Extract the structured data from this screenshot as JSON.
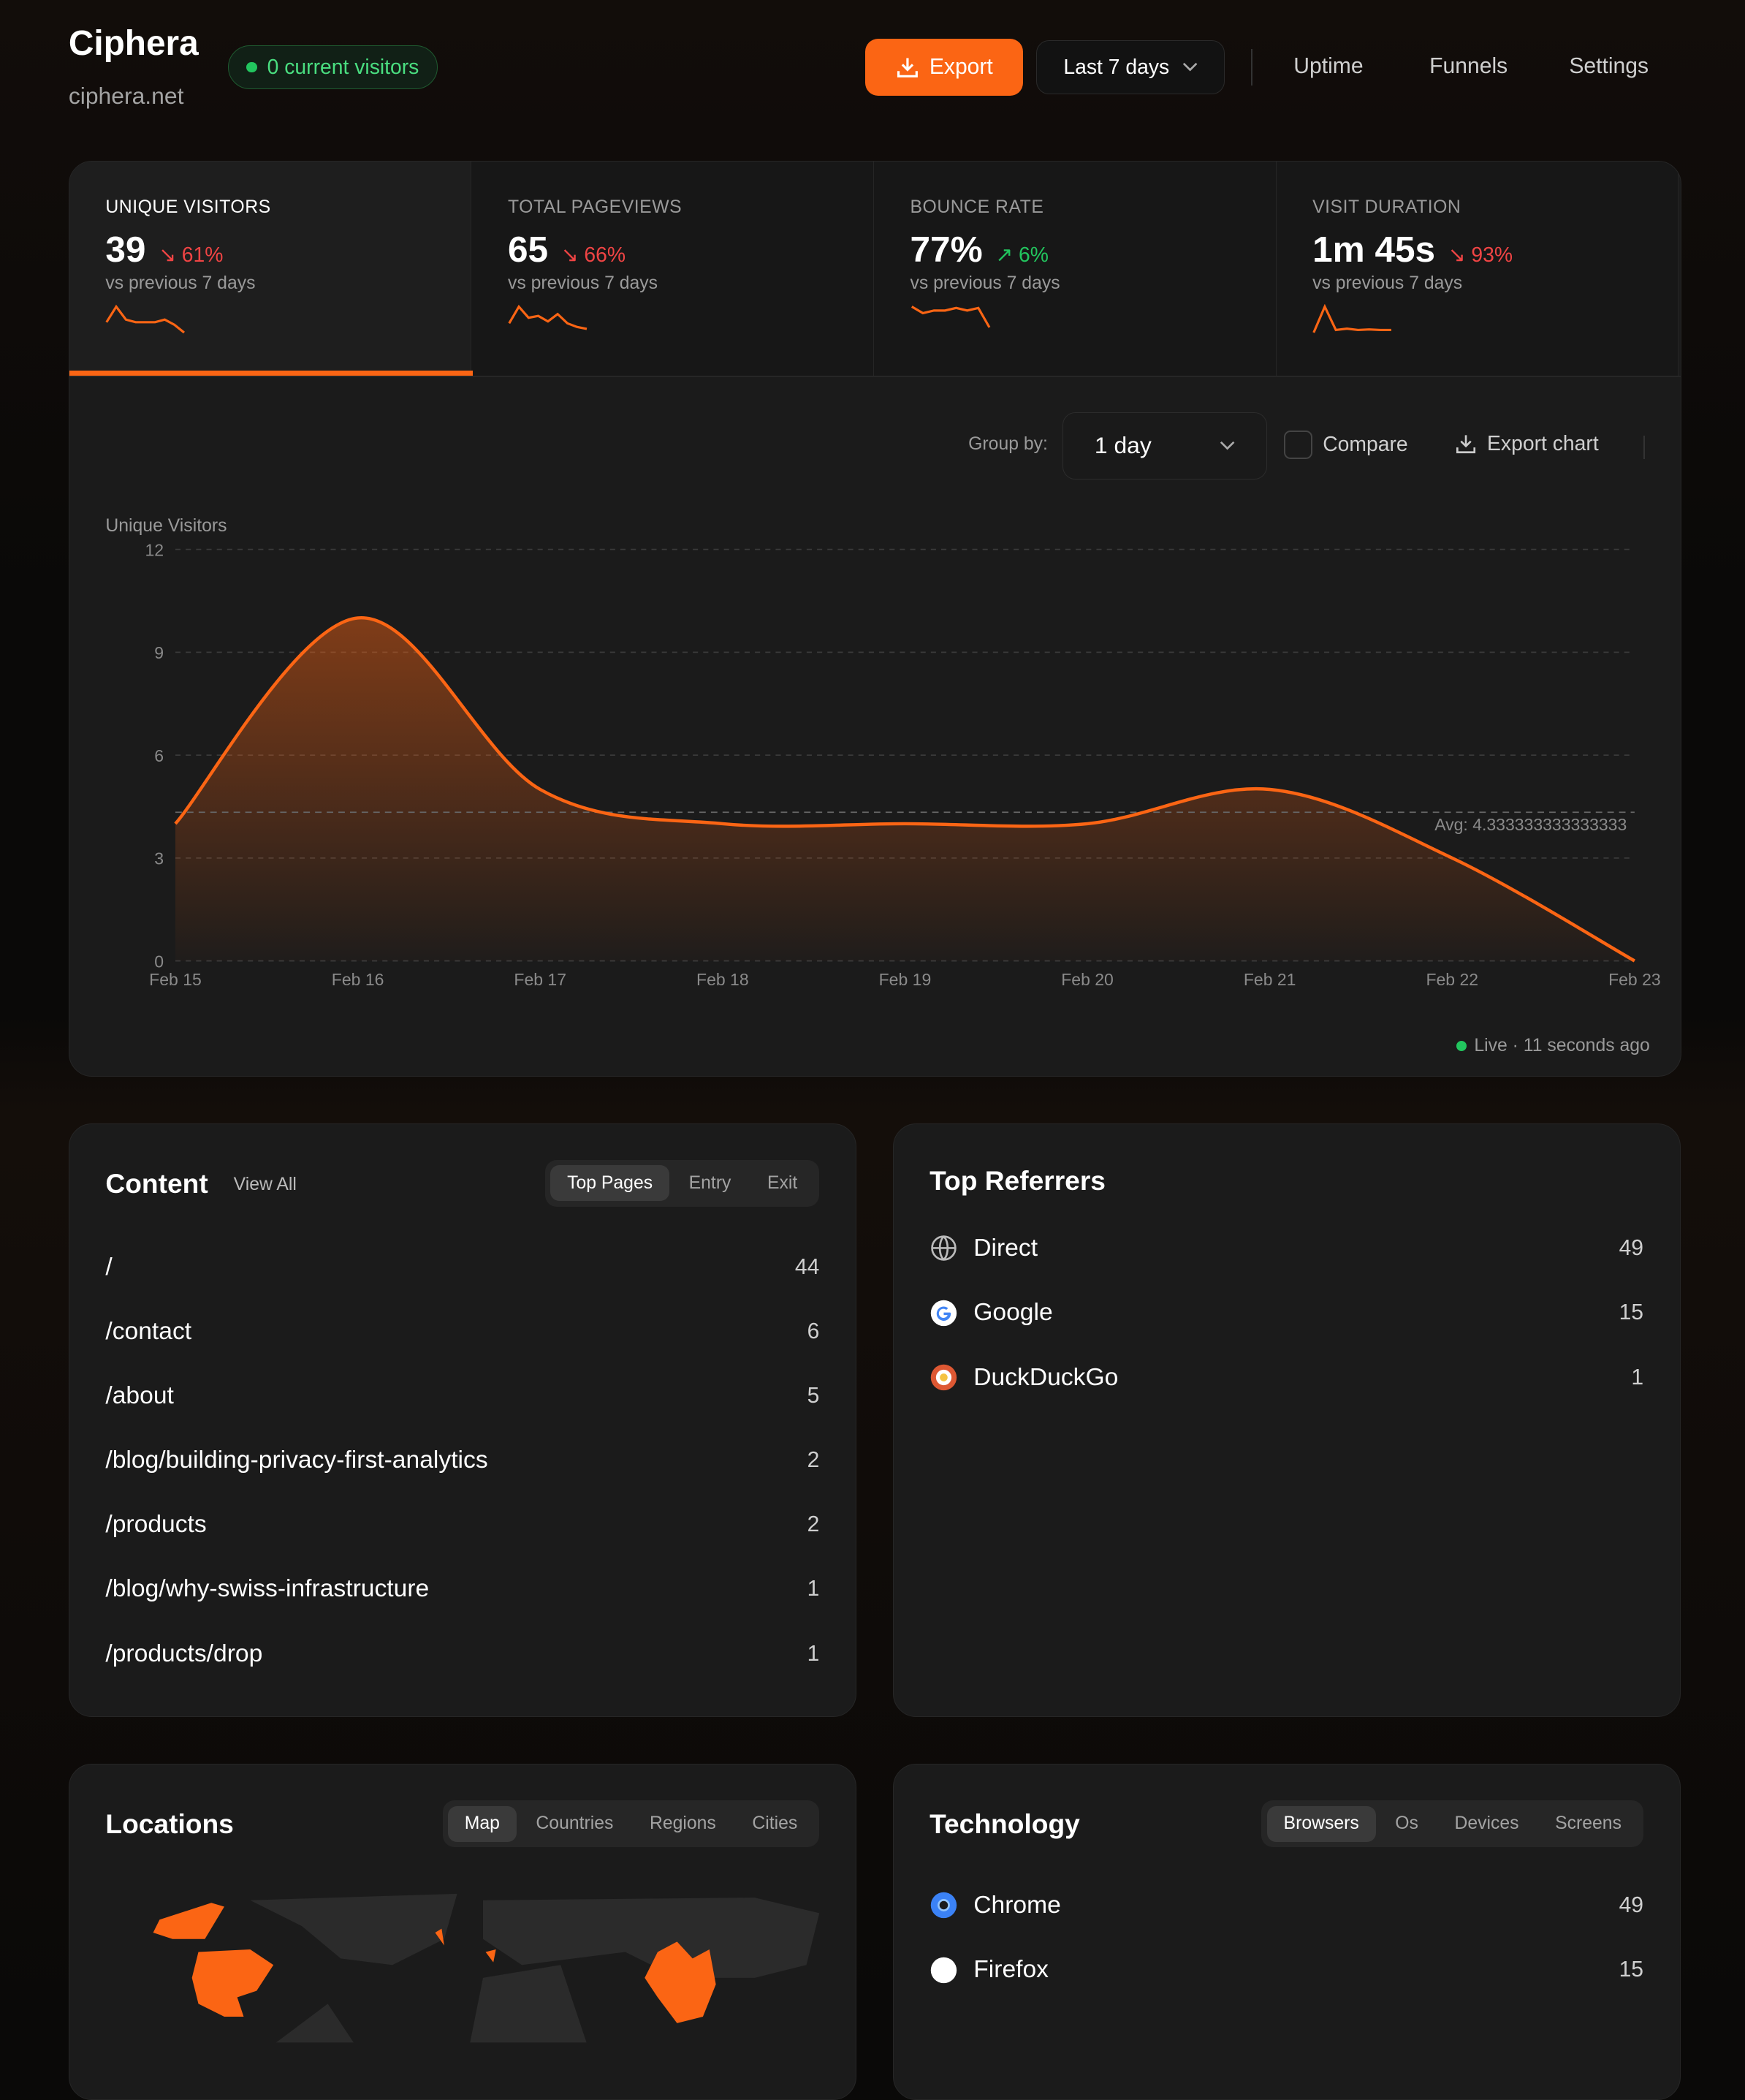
{
  "header": {
    "title": "Ciphera",
    "domain": "ciphera.net",
    "live": "0 current visitors",
    "export": "Export",
    "date_range": "Last 7 days",
    "nav": [
      "Uptime",
      "Funnels",
      "Settings"
    ]
  },
  "stats": [
    {
      "label": "UNIQUE VISITORS",
      "value": "39",
      "change": "61%",
      "direction": "down",
      "vs": "vs previous 7 days",
      "spark": [
        4,
        10,
        5,
        4,
        4,
        4,
        5,
        3,
        0
      ]
    },
    {
      "label": "TOTAL PAGEVIEWS",
      "value": "65",
      "change": "66%",
      "direction": "down",
      "vs": "vs previous 7 days",
      "spark": [
        5,
        14,
        8,
        9,
        6,
        10,
        5,
        3,
        2
      ]
    },
    {
      "label": "BOUNCE RATE",
      "value": "77%",
      "change": "6%",
      "direction": "up",
      "vs": "vs previous 7 days",
      "spark": [
        100,
        75,
        85,
        85,
        95,
        85,
        95,
        20
      ]
    },
    {
      "label": "VISIT DURATION",
      "value": "1m 45s",
      "change": "93%",
      "direction": "down",
      "vs": "vs previous 7 days",
      "spark": [
        0,
        100,
        10,
        15,
        10,
        12,
        10,
        10
      ]
    }
  ],
  "chart_controls": {
    "group_by_label": "Group by:",
    "group_by": "1 day",
    "compare": "Compare",
    "export_chart": "Export chart",
    "live": "Live · 11 seconds ago"
  },
  "chart_data": {
    "type": "area",
    "ylabel": "Unique Visitors",
    "x": [
      "Feb 15",
      "Feb 16",
      "Feb 17",
      "Feb 18",
      "Feb 19",
      "Feb 20",
      "Feb 21",
      "Feb 22",
      "Feb 23"
    ],
    "values": [
      4,
      10,
      5,
      4,
      4,
      4,
      5,
      3,
      0
    ],
    "yticks": [
      0,
      3,
      6,
      9,
      12
    ],
    "ylim": [
      0,
      12
    ],
    "avg": 4.333333333333333,
    "avg_label": "Avg: 4.333333333333333",
    "grid": true,
    "color": "#fb6514"
  },
  "content": {
    "title": "Content",
    "view_all": "View All",
    "tabs": [
      "Top Pages",
      "Entry",
      "Exit"
    ],
    "rows": [
      {
        "path": "/",
        "count": "44"
      },
      {
        "path": "/contact",
        "count": "6"
      },
      {
        "path": "/about",
        "count": "5"
      },
      {
        "path": "/blog/building-privacy-first-analytics",
        "count": "2"
      },
      {
        "path": "/products",
        "count": "2"
      },
      {
        "path": "/blog/why-swiss-infrastructure",
        "count": "1"
      },
      {
        "path": "/products/drop",
        "count": "1"
      }
    ]
  },
  "referrers": {
    "title": "Top Referrers",
    "rows": [
      {
        "name": "Direct",
        "count": "49",
        "icon": "globe-icon"
      },
      {
        "name": "Google",
        "count": "15",
        "icon": "google-icon"
      },
      {
        "name": "DuckDuckGo",
        "count": "1",
        "icon": "duckduckgo-icon"
      }
    ]
  },
  "locations": {
    "title": "Locations",
    "tabs": [
      "Map",
      "Countries",
      "Regions",
      "Cities"
    ]
  },
  "technology": {
    "title": "Technology",
    "tabs": [
      "Browsers",
      "Os",
      "Devices",
      "Screens"
    ],
    "rows": [
      {
        "name": "Chrome",
        "count": "49",
        "icon": "chrome-icon"
      },
      {
        "name": "Firefox",
        "count": "15",
        "icon": "firefox-icon"
      }
    ]
  }
}
